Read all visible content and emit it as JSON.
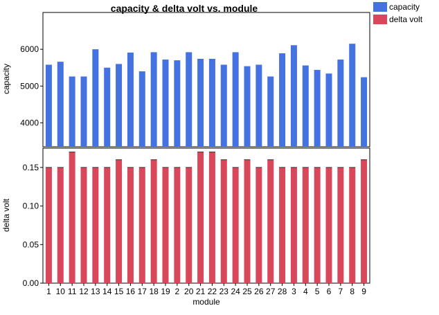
{
  "chart_data": {
    "type": "bar",
    "title": "capacity & delta volt vs. module",
    "xlabel": "module",
    "categories": [
      "1",
      "10",
      "11",
      "12",
      "13",
      "14",
      "15",
      "16",
      "17",
      "18",
      "19",
      "2",
      "20",
      "21",
      "22",
      "23",
      "24",
      "25",
      "26",
      "27",
      "28",
      "3",
      "4",
      "5",
      "6",
      "7",
      "8",
      "9"
    ],
    "legend_position": "top-right",
    "grid": false,
    "panels": [
      {
        "name": "capacity",
        "ylabel": "capacity",
        "ylim": [
          3350,
          7000
        ],
        "yticks": [
          4000,
          5000,
          6000
        ],
        "ytick_labels": [
          "4000",
          "5000",
          "6000"
        ],
        "color": "#4472E0",
        "values": [
          5580,
          5660,
          5260,
          5260,
          6000,
          5500,
          5600,
          5910,
          5400,
          5920,
          5720,
          5700,
          5920,
          5740,
          5740,
          5580,
          5920,
          5540,
          5580,
          5260,
          5890,
          6110,
          5560,
          5440,
          5340,
          5720,
          6150,
          5240
        ]
      },
      {
        "name": "delta volt",
        "ylabel": "delta volt",
        "ylim": [
          0,
          0.175
        ],
        "yticks": [
          0.0,
          0.05,
          0.1,
          0.15
        ],
        "ytick_labels": [
          "0.00",
          "0.05",
          "0.10",
          "0.15"
        ],
        "color": "#D9475A",
        "values": [
          0.15,
          0.15,
          0.17,
          0.15,
          0.15,
          0.15,
          0.16,
          0.15,
          0.15,
          0.16,
          0.15,
          0.15,
          0.15,
          0.17,
          0.17,
          0.16,
          0.15,
          0.16,
          0.15,
          0.16,
          0.15,
          0.15,
          0.15,
          0.15,
          0.15,
          0.15,
          0.15,
          0.16
        ]
      }
    ]
  }
}
